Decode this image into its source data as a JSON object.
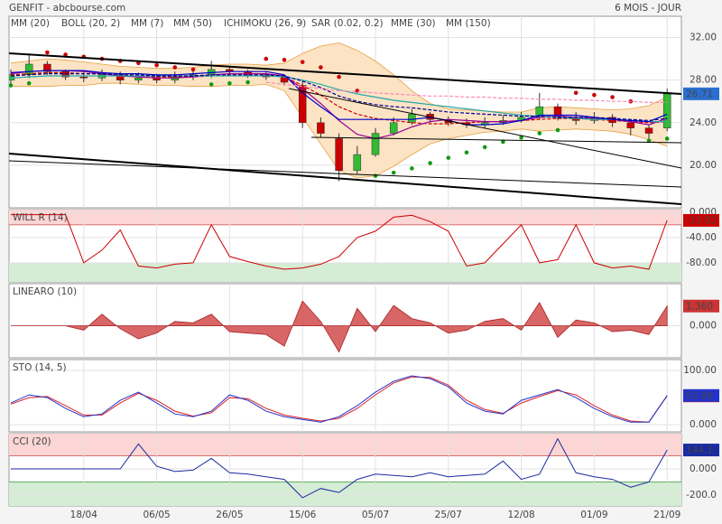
{
  "chart_data": [
    {
      "type": "candlestick",
      "title": "GENFIT - abcbourse.com",
      "subtitle": "6 MOIS - JOUR",
      "open": [
        28.0,
        28.5,
        29.5,
        28.8,
        28.3,
        28.2,
        28.5,
        28.0,
        28.2,
        28.0,
        28.3,
        28.5,
        29.0,
        28.8,
        28.5,
        28.3,
        27.5,
        24.0,
        22.5,
        19.5,
        21.0,
        23.0,
        24.0,
        24.8,
        24.3,
        24.0,
        23.8,
        24.0,
        24.2,
        24.5,
        25.5,
        24.5,
        24.2,
        24.5,
        24.0,
        23.5,
        23.5
      ],
      "high": [
        29.0,
        30.5,
        29.8,
        29.0,
        28.8,
        29.0,
        28.8,
        28.7,
        28.6,
        28.8,
        29.0,
        29.8,
        29.3,
        29.0,
        28.8,
        28.5,
        28.0,
        24.5,
        23.0,
        21.8,
        23.5,
        24.5,
        25.3,
        25.0,
        24.6,
        24.4,
        24.5,
        24.7,
        25.0,
        26.8,
        25.8,
        25.0,
        25.0,
        24.8,
        24.3,
        23.8,
        27.2
      ],
      "low": [
        27.6,
        28.2,
        28.5,
        28.0,
        27.8,
        27.9,
        27.6,
        27.7,
        27.7,
        27.7,
        28.0,
        28.2,
        28.5,
        28.2,
        28.0,
        27.5,
        23.5,
        22.6,
        18.5,
        19.2,
        20.8,
        22.8,
        23.8,
        24.0,
        23.7,
        23.5,
        23.5,
        23.8,
        24.0,
        24.3,
        24.2,
        23.8,
        23.9,
        23.6,
        22.8,
        22.5,
        23.2
      ],
      "close": [
        28.5,
        29.5,
        28.8,
        28.3,
        28.2,
        28.5,
        28.0,
        28.2,
        28.0,
        28.3,
        28.5,
        29.0,
        28.8,
        28.5,
        28.3,
        27.8,
        24.0,
        23.0,
        19.5,
        21.0,
        23.0,
        24.0,
        24.8,
        24.3,
        24.0,
        23.8,
        24.0,
        24.2,
        24.5,
        25.5,
        24.5,
        24.2,
        24.5,
        24.0,
        23.5,
        23.0,
        26.71
      ],
      "up_color": "#33bb33",
      "down_color": "#cc0000",
      "last_box_color": "#2a6fd0",
      "ylim": [
        16,
        34
      ],
      "yticks": [
        {
          "value": 20,
          "label": "20.00"
        },
        {
          "value": 24,
          "label": "24.00"
        },
        {
          "value": 28,
          "label": "28.00"
        },
        {
          "value": 32,
          "label": "32.00"
        }
      ],
      "series": [
        {
          "name": "MM (20)",
          "color": "#cc0000",
          "dash": true,
          "values": [
            28.5,
            28.6,
            28.7,
            28.7,
            28.6,
            28.6,
            28.5,
            28.4,
            28.3,
            28.3,
            28.3,
            28.4,
            28.5,
            28.5,
            28.5,
            28.3,
            27.5,
            26.6,
            25.5,
            24.8,
            24.4,
            24.2,
            24.0,
            23.9,
            23.9,
            24.0,
            24.1,
            24.1,
            24.2,
            24.3,
            24.4,
            24.4,
            24.3,
            24.2,
            24.1,
            24.0,
            24.1
          ]
        },
        {
          "name": "BOLL (20, 2)",
          "color": "#e8a040",
          "fill": "#fbe3c4",
          "upper": [
            29.6,
            29.8,
            30.0,
            29.9,
            29.7,
            29.5,
            29.3,
            29.2,
            29.1,
            29.1,
            29.2,
            29.4,
            29.5,
            29.5,
            29.4,
            29.6,
            30.5,
            31.2,
            31.5,
            30.8,
            29.8,
            28.5,
            27.0,
            25.8,
            25.3,
            25.2,
            25.1,
            25.0,
            25.0,
            25.4,
            25.5,
            25.4,
            25.3,
            25.2,
            25.3,
            25.6,
            26.4
          ],
          "lower": [
            27.4,
            27.4,
            27.4,
            27.5,
            27.5,
            27.7,
            27.7,
            27.6,
            27.5,
            27.5,
            27.4,
            27.4,
            27.5,
            27.5,
            27.6,
            27.0,
            24.5,
            22.0,
            19.5,
            18.8,
            19.0,
            19.9,
            21.0,
            22.0,
            22.5,
            22.8,
            23.1,
            23.2,
            23.4,
            23.2,
            23.3,
            23.4,
            23.3,
            23.2,
            22.9,
            22.4,
            21.8
          ]
        },
        {
          "name": "MM (7)",
          "color": "#990099",
          "values": [
            28.6,
            28.8,
            28.9,
            28.9,
            28.8,
            28.6,
            28.4,
            28.3,
            28.2,
            28.2,
            28.3,
            28.5,
            28.6,
            28.6,
            28.6,
            28.4,
            27.2,
            25.8,
            24.2,
            22.9,
            22.5,
            22.9,
            23.6,
            24.1,
            24.3,
            24.2,
            24.1,
            24.1,
            24.2,
            24.5,
            24.6,
            24.5,
            24.4,
            24.3,
            24.1,
            23.8,
            24.4
          ]
        },
        {
          "name": "MM (50)",
          "color": "#22aaaa",
          "values": [
            28.2,
            28.3,
            28.4,
            28.4,
            28.4,
            28.4,
            28.4,
            28.4,
            28.4,
            28.4,
            28.4,
            28.4,
            28.4,
            28.4,
            28.4,
            28.3,
            28.0,
            27.6,
            27.1,
            26.7,
            26.4,
            26.1,
            25.9,
            25.7,
            25.5,
            25.3,
            25.1,
            24.9,
            24.7,
            24.6,
            24.5,
            24.4,
            24.3,
            24.3,
            24.2,
            24.1,
            24.1
          ]
        },
        {
          "name": "ICHIMOKU (26, 9)",
          "color": "#0000cc",
          "values": [
            28.7,
            28.8,
            28.9,
            28.9,
            28.9,
            28.7,
            28.6,
            28.6,
            28.5,
            28.5,
            28.6,
            28.7,
            28.8,
            28.8,
            28.8,
            28.5,
            26.8,
            25.5,
            24.3,
            24.3,
            24.3,
            24.3,
            24.3,
            24.5,
            24.2,
            23.8,
            23.8,
            23.9,
            24.2,
            24.7,
            24.7,
            24.7,
            24.5,
            24.3,
            24.2,
            24.1,
            24.8
          ]
        },
        {
          "name": "SAR (0.02, 0.2)",
          "color": "#cc0000",
          "color_below": "#119911",
          "style": "dots",
          "values": [
            27.5,
            27.7,
            30.6,
            30.4,
            30.2,
            30.0,
            29.8,
            29.6,
            29.4,
            29.2,
            29.0,
            27.6,
            27.7,
            27.8,
            30.0,
            29.9,
            29.7,
            29.2,
            28.3,
            27.0,
            19.0,
            19.3,
            19.7,
            20.2,
            20.7,
            21.2,
            21.7,
            22.2,
            22.6,
            23.0,
            23.3,
            26.8,
            26.6,
            26.4,
            26.0,
            22.3,
            22.5
          ]
        },
        {
          "name": "MME (30)",
          "color": "#000099",
          "dash": true,
          "values": [
            28.4,
            28.5,
            28.6,
            28.6,
            28.6,
            28.6,
            28.5,
            28.5,
            28.4,
            28.4,
            28.4,
            28.5,
            28.5,
            28.5,
            28.5,
            28.4,
            27.9,
            27.3,
            26.5,
            26.0,
            25.7,
            25.5,
            25.4,
            25.2,
            25.0,
            24.9,
            24.8,
            24.7,
            24.6,
            24.6,
            24.5,
            24.5,
            24.5,
            24.4,
            24.3,
            24.2,
            24.4
          ]
        },
        {
          "name": "MM (150)",
          "color": "#ff88bb",
          "dash": true,
          "values": [
            null,
            null,
            null,
            null,
            null,
            null,
            null,
            null,
            null,
            null,
            null,
            null,
            null,
            null,
            27.8,
            27.6,
            27.4,
            27.2,
            27.0,
            26.9,
            26.8,
            26.7,
            26.6,
            26.5,
            26.5,
            26.4,
            26.4,
            26.3,
            26.3,
            26.2,
            26.2,
            26.1,
            26.1,
            26.0,
            26.0,
            25.9,
            25.9
          ]
        }
      ]
    },
    {
      "type": "line",
      "title": "WILL R (14)",
      "ylim": [
        -110,
        4
      ],
      "yticks": [
        {
          "value": 0,
          "label": "0.000"
        },
        {
          "value": -40,
          "label": "-40.00"
        },
        {
          "value": -80,
          "label": "-80.00"
        }
      ],
      "zones": {
        "upper": -20,
        "lower": -80,
        "upper_color": "#fcd5d5",
        "lower_color": "#d5ecd5"
      },
      "series": [
        {
          "color": "#cc0000",
          "values": [
            -4,
            -4,
            -4,
            -4,
            -80,
            -60,
            -28,
            -85,
            -88,
            -82,
            -80,
            -20,
            -70,
            -78,
            -85,
            -90,
            -88,
            -82,
            -70,
            -40,
            -30,
            -8,
            -5,
            -15,
            -30,
            -85,
            -80,
            -50,
            -20,
            -80,
            -75,
            -20,
            -80,
            -88,
            -85,
            -90,
            -13.02
          ]
        }
      ]
    },
    {
      "type": "area",
      "title": "LINEARO (10)",
      "ylim": [
        -2.2,
        2.9
      ],
      "yticks": [
        {
          "value": 0,
          "label": "0.000"
        }
      ],
      "series": [
        {
          "color": "#cc3333",
          "values": [
            0,
            0,
            0,
            0,
            -0.3,
            0.8,
            -0.2,
            -0.9,
            -0.5,
            0.3,
            0.2,
            0.8,
            -0.4,
            -0.5,
            -0.6,
            -1.4,
            1.7,
            0.3,
            -1.8,
            1.2,
            -0.4,
            1.4,
            0.5,
            0.2,
            -0.5,
            -0.3,
            0.3,
            0.5,
            -0.3,
            1.6,
            -0.8,
            0.4,
            0.2,
            -0.4,
            -0.3,
            -0.6,
            1.36
          ],
          "value_labels": [
            null,
            null,
            null,
            null,
            null,
            null,
            null,
            null,
            null,
            null,
            null,
            null,
            null,
            null,
            null,
            null,
            null,
            null,
            null,
            null,
            null,
            null,
            null,
            null,
            null,
            null,
            null,
            null,
            null,
            null,
            null,
            null,
            null,
            null,
            null,
            null,
            "1.360"
          ]
        }
      ]
    },
    {
      "type": "line",
      "title": "STO (14, 5)",
      "ylim": [
        -13,
        120
      ],
      "yticks": [
        {
          "value": 100,
          "label": "100.00"
        },
        {
          "value": 0,
          "label": "0.000"
        }
      ],
      "series": [
        {
          "color": "#dd2222",
          "values": [
            38,
            50,
            52,
            35,
            18,
            18,
            40,
            58,
            45,
            25,
            16,
            22,
            50,
            48,
            30,
            18,
            12,
            7,
            12,
            30,
            55,
            77,
            88,
            87,
            73,
            45,
            28,
            21,
            40,
            52,
            63,
            55,
            35,
            18,
            7,
            5,
            53.18
          ]
        },
        {
          "color": "#2233cc",
          "values": [
            40,
            55,
            50,
            30,
            15,
            20,
            45,
            60,
            40,
            20,
            15,
            25,
            55,
            45,
            25,
            15,
            10,
            5,
            15,
            35,
            60,
            80,
            90,
            85,
            70,
            40,
            25,
            20,
            45,
            55,
            65,
            50,
            30,
            15,
            5,
            5,
            53.88
          ]
        }
      ]
    },
    {
      "type": "line",
      "title": "CCI (20)",
      "ylim": [
        -283,
        269
      ],
      "yticks": [
        {
          "value": 0,
          "label": "0.000"
        },
        {
          "value": -200,
          "label": "-200.0"
        }
      ],
      "zones": {
        "upper": 100,
        "lower": -100,
        "upper_color": "#fcd5d5",
        "lower_color": "#d5ecd5"
      },
      "categories": [
        null,
        null,
        null,
        null,
        "18/04",
        null,
        null,
        null,
        "06/05",
        null,
        null,
        null,
        "26/05",
        null,
        null,
        null,
        "15/06",
        null,
        null,
        null,
        "05/07",
        null,
        null,
        null,
        "25/07",
        null,
        null,
        null,
        "12/08",
        null,
        null,
        null,
        "01/09",
        null,
        null,
        null,
        "21/09"
      ],
      "series": [
        {
          "color": "#1a2aa0",
          "values": [
            0,
            0,
            0,
            0,
            0,
            0,
            0,
            190,
            20,
            -20,
            -10,
            80,
            -30,
            -40,
            -60,
            -80,
            -220,
            -150,
            -180,
            -80,
            -40,
            -50,
            -60,
            -30,
            -60,
            -50,
            -40,
            60,
            -80,
            -40,
            230,
            -30,
            -60,
            -80,
            -140,
            -100,
            144.1
          ]
        }
      ]
    }
  ]
}
